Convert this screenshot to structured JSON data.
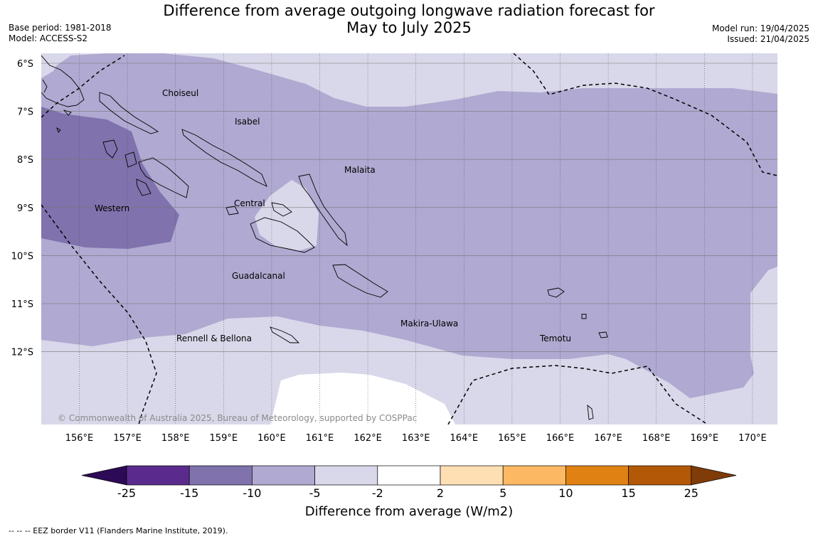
{
  "title": {
    "line1": "Difference from average outgoing longwave radiation forecast for",
    "line2": "May to July 2025"
  },
  "meta_left": {
    "base_period": "Base period: 1981-2018",
    "model": "Model: ACCESS-S2"
  },
  "meta_right": {
    "model_run": "Model run: 19/04/2025",
    "issued": "Issued: 21/04/2025"
  },
  "map": {
    "lat_labels": [
      "6°S",
      "7°S",
      "8°S",
      "9°S",
      "10°S",
      "11°S",
      "12°S"
    ],
    "lon_labels": [
      "156°E",
      "157°E",
      "158°E",
      "159°E",
      "160°E",
      "161°E",
      "162°E",
      "163°E",
      "164°E",
      "165°E",
      "166°E",
      "167°E",
      "168°E",
      "169°E",
      "170°E"
    ],
    "regions": {
      "choiseul": "Choiseul",
      "isabel": "Isabel",
      "malaita": "Malaita",
      "western": "Western",
      "central": "Central",
      "guadalcanal": "Guadalcanal",
      "makira": "Makira-Ulawa",
      "rennell": "Rennell & Bellona",
      "temotu": "Temotu"
    },
    "copyright": "© Commonwealth of Australia 2025, Bureau of Meteorology, supported by COSPPac",
    "fill_colors": {
      "below_minus_15": "#7f72ad",
      "minus_15_to_minus_5": "#b0a9d1",
      "minus_5_to_minus_2": "#d8d8ea",
      "minus_2_to_2": "#ffffff"
    }
  },
  "colorbar": {
    "labels": [
      "-25",
      "-15",
      "-10",
      "-5",
      "-2",
      "2",
      "5",
      "10",
      "15",
      "25"
    ],
    "colors": [
      "#2d0a55",
      "#5a2b8c",
      "#7f72ad",
      "#b0a9d1",
      "#d8d8ea",
      "#ffffff",
      "#fedfb4",
      "#fdb863",
      "#e08213",
      "#b35806",
      "#7f3b08"
    ],
    "title": "Difference from average (W/m2)"
  },
  "footnote": "--  --  -- EEZ border V11 (Flanders Marine Institute, 2019)."
}
